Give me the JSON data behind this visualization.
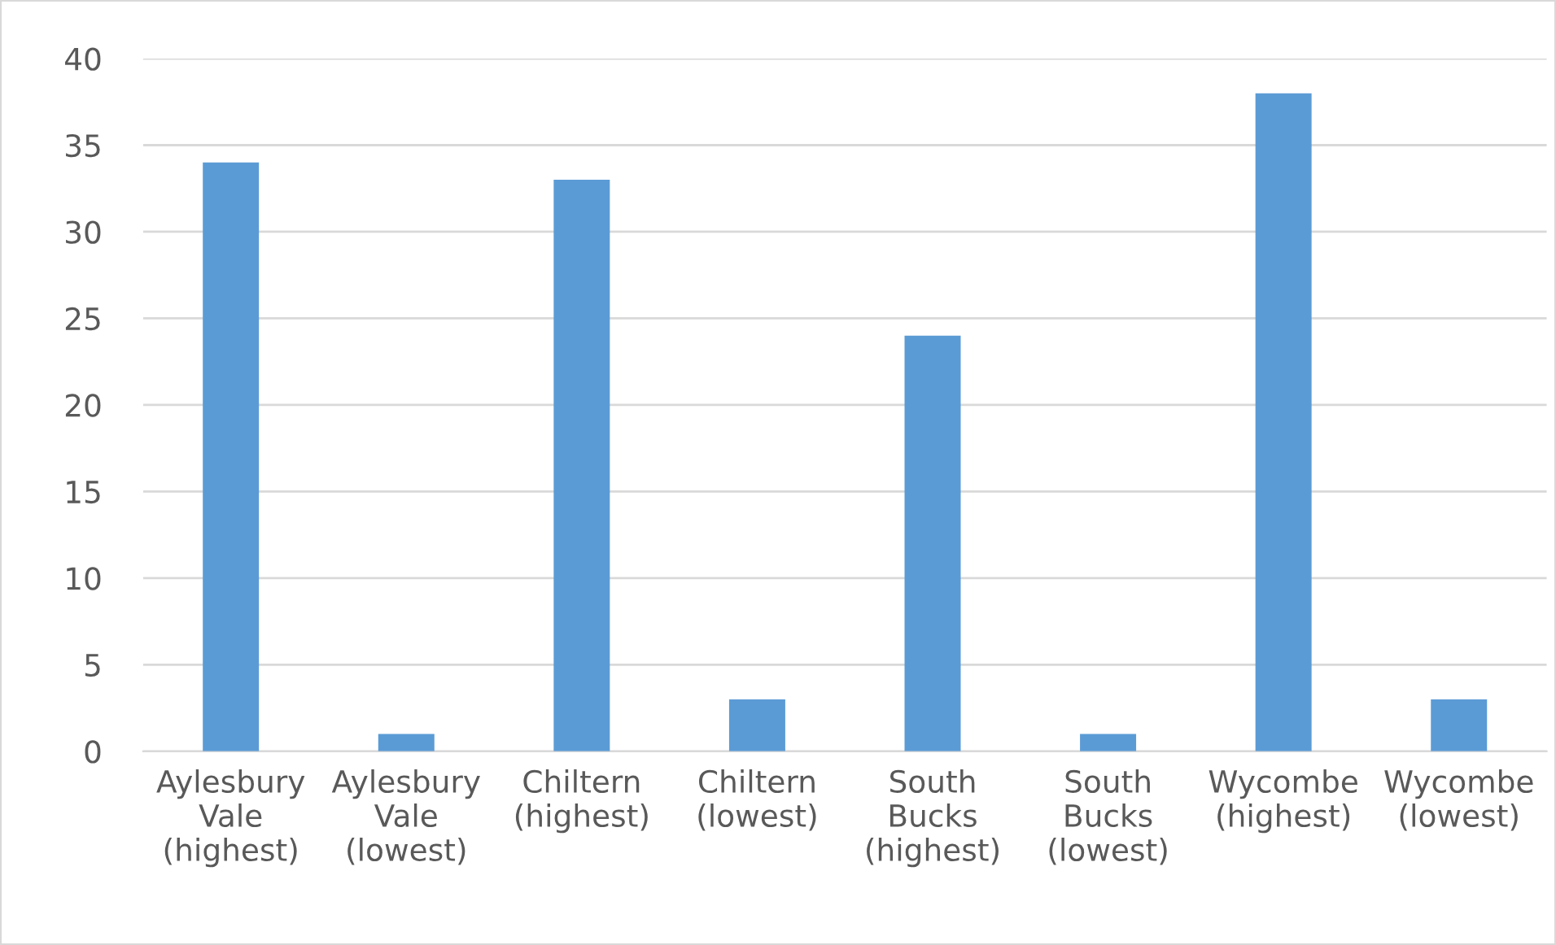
{
  "chart_data": {
    "type": "bar",
    "categories": [
      "Aylesbury\nVale\n(highest)",
      "Aylesbury\nVale\n(lowest)",
      "Chiltern\n(highest)",
      "Chiltern\n(lowest)",
      "South\nBucks\n(highest)",
      "South\nBucks\n(lowest)",
      "Wycombe\n(highest)",
      "Wycombe\n(lowest)"
    ],
    "values": [
      34,
      1,
      33,
      3,
      24,
      1,
      38,
      3
    ],
    "color": "#5b9bd5",
    "ylim": [
      0,
      40
    ],
    "yticks": [
      0,
      5,
      10,
      15,
      20,
      25,
      30,
      35,
      40
    ],
    "grid": "y",
    "legend": false
  }
}
